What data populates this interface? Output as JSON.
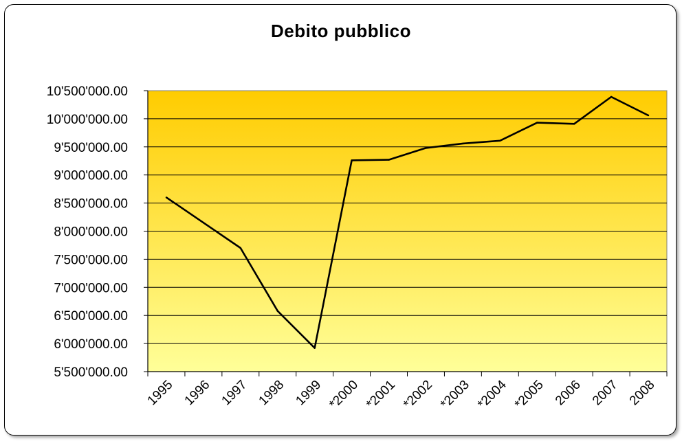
{
  "chart_data": {
    "type": "line",
    "title": "Debito pubblico",
    "xlabel": "",
    "ylabel": "",
    "categories": [
      "1995",
      "1996",
      "1997",
      "1998",
      "1999",
      "*2000",
      "*2001",
      "*2002",
      "*2003",
      "*2004",
      "*2005",
      "2006",
      "2007",
      "2008"
    ],
    "y_tick_labels": [
      "10'500'000.00",
      "10'000'000.00",
      "9'500'000.00",
      "9'000'000.00",
      "8'500'000.00",
      "8'000'000.00",
      "7'500'000.00",
      "7'000'000.00",
      "6'500'000.00",
      "6'000'000.00",
      "5'500'000.00"
    ],
    "series": [
      {
        "values": [
          8600000,
          8150000,
          7700000,
          6580000,
          5920000,
          9260000,
          9270000,
          9480000,
          9560000,
          9610000,
          9930000,
          9910000,
          10390000,
          10060000
        ],
        "color": "#000000"
      }
    ],
    "ylim": [
      5500000,
      10500000
    ],
    "grid": true,
    "legend": "none",
    "colors": {
      "plot_top": "#FFCC00",
      "plot_bottom": "#FFFF99",
      "line": "#000000"
    }
  }
}
